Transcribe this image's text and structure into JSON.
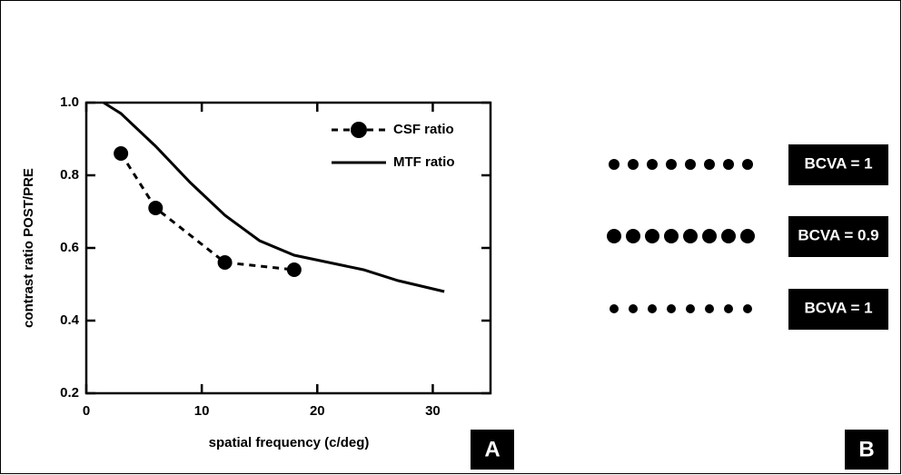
{
  "chart_data": {
    "type": "line",
    "xlabel": "spatial frequency (c/deg)",
    "ylabel": "contrast ratio POST/PRE",
    "xlim": [
      0,
      35
    ],
    "ylim": [
      0.2,
      1.0
    ],
    "xticks": [
      0,
      10,
      20,
      30
    ],
    "yticks": [
      {
        "value": 1,
        "label": "1.0"
      },
      0.8,
      0.6,
      0.4,
      0.2
    ],
    "legend": "upper right",
    "series": [
      {
        "name": "CSF ratio",
        "color": "#000000",
        "dash": true,
        "markers": true,
        "x": [
          3,
          6,
          12,
          18
        ],
        "values": [
          0.86,
          0.71,
          0.56,
          0.54
        ]
      },
      {
        "name": "MTF ratio",
        "color": "#000000",
        "dash": false,
        "markers": false,
        "x": [
          1.5,
          3,
          6,
          9,
          12,
          15,
          18,
          21,
          24,
          27,
          31
        ],
        "values": [
          1.0,
          0.97,
          0.88,
          0.78,
          0.69,
          0.62,
          0.58,
          0.56,
          0.54,
          0.51,
          0.48
        ]
      }
    ]
  },
  "panels": {
    "a": "A",
    "b": "B"
  },
  "bcva": [
    "BCVA = 1",
    "BCVA = 0.9",
    "BCVA = 1"
  ]
}
